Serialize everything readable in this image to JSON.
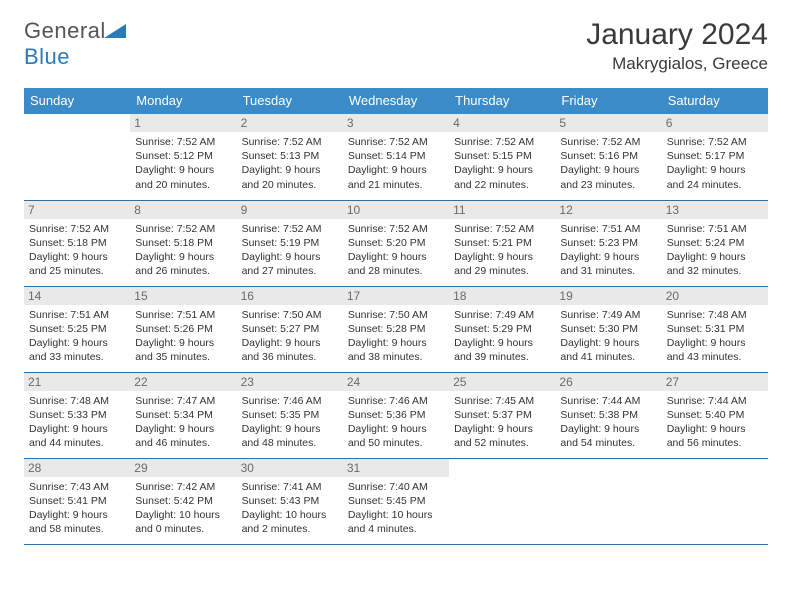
{
  "logo": {
    "text1": "General",
    "text2": "Blue"
  },
  "title": "January 2024",
  "location": "Makrygialos, Greece",
  "colors": {
    "header_bg": "#3b8bc9",
    "header_fg": "#ffffff",
    "daynum_bg": "#e9e9e9",
    "daynum_fg": "#6a6a6a",
    "rule": "#2f6fa3",
    "logo_blue": "#2a7ab9"
  },
  "weekdays": [
    "Sunday",
    "Monday",
    "Tuesday",
    "Wednesday",
    "Thursday",
    "Friday",
    "Saturday"
  ],
  "weeks": [
    [
      {
        "n": "",
        "sr": "",
        "ss": "",
        "dl": ""
      },
      {
        "n": "1",
        "sr": "Sunrise: 7:52 AM",
        "ss": "Sunset: 5:12 PM",
        "dl": "Daylight: 9 hours and 20 minutes."
      },
      {
        "n": "2",
        "sr": "Sunrise: 7:52 AM",
        "ss": "Sunset: 5:13 PM",
        "dl": "Daylight: 9 hours and 20 minutes."
      },
      {
        "n": "3",
        "sr": "Sunrise: 7:52 AM",
        "ss": "Sunset: 5:14 PM",
        "dl": "Daylight: 9 hours and 21 minutes."
      },
      {
        "n": "4",
        "sr": "Sunrise: 7:52 AM",
        "ss": "Sunset: 5:15 PM",
        "dl": "Daylight: 9 hours and 22 minutes."
      },
      {
        "n": "5",
        "sr": "Sunrise: 7:52 AM",
        "ss": "Sunset: 5:16 PM",
        "dl": "Daylight: 9 hours and 23 minutes."
      },
      {
        "n": "6",
        "sr": "Sunrise: 7:52 AM",
        "ss": "Sunset: 5:17 PM",
        "dl": "Daylight: 9 hours and 24 minutes."
      }
    ],
    [
      {
        "n": "7",
        "sr": "Sunrise: 7:52 AM",
        "ss": "Sunset: 5:18 PM",
        "dl": "Daylight: 9 hours and 25 minutes."
      },
      {
        "n": "8",
        "sr": "Sunrise: 7:52 AM",
        "ss": "Sunset: 5:18 PM",
        "dl": "Daylight: 9 hours and 26 minutes."
      },
      {
        "n": "9",
        "sr": "Sunrise: 7:52 AM",
        "ss": "Sunset: 5:19 PM",
        "dl": "Daylight: 9 hours and 27 minutes."
      },
      {
        "n": "10",
        "sr": "Sunrise: 7:52 AM",
        "ss": "Sunset: 5:20 PM",
        "dl": "Daylight: 9 hours and 28 minutes."
      },
      {
        "n": "11",
        "sr": "Sunrise: 7:52 AM",
        "ss": "Sunset: 5:21 PM",
        "dl": "Daylight: 9 hours and 29 minutes."
      },
      {
        "n": "12",
        "sr": "Sunrise: 7:51 AM",
        "ss": "Sunset: 5:23 PM",
        "dl": "Daylight: 9 hours and 31 minutes."
      },
      {
        "n": "13",
        "sr": "Sunrise: 7:51 AM",
        "ss": "Sunset: 5:24 PM",
        "dl": "Daylight: 9 hours and 32 minutes."
      }
    ],
    [
      {
        "n": "14",
        "sr": "Sunrise: 7:51 AM",
        "ss": "Sunset: 5:25 PM",
        "dl": "Daylight: 9 hours and 33 minutes."
      },
      {
        "n": "15",
        "sr": "Sunrise: 7:51 AM",
        "ss": "Sunset: 5:26 PM",
        "dl": "Daylight: 9 hours and 35 minutes."
      },
      {
        "n": "16",
        "sr": "Sunrise: 7:50 AM",
        "ss": "Sunset: 5:27 PM",
        "dl": "Daylight: 9 hours and 36 minutes."
      },
      {
        "n": "17",
        "sr": "Sunrise: 7:50 AM",
        "ss": "Sunset: 5:28 PM",
        "dl": "Daylight: 9 hours and 38 minutes."
      },
      {
        "n": "18",
        "sr": "Sunrise: 7:49 AM",
        "ss": "Sunset: 5:29 PM",
        "dl": "Daylight: 9 hours and 39 minutes."
      },
      {
        "n": "19",
        "sr": "Sunrise: 7:49 AM",
        "ss": "Sunset: 5:30 PM",
        "dl": "Daylight: 9 hours and 41 minutes."
      },
      {
        "n": "20",
        "sr": "Sunrise: 7:48 AM",
        "ss": "Sunset: 5:31 PM",
        "dl": "Daylight: 9 hours and 43 minutes."
      }
    ],
    [
      {
        "n": "21",
        "sr": "Sunrise: 7:48 AM",
        "ss": "Sunset: 5:33 PM",
        "dl": "Daylight: 9 hours and 44 minutes."
      },
      {
        "n": "22",
        "sr": "Sunrise: 7:47 AM",
        "ss": "Sunset: 5:34 PM",
        "dl": "Daylight: 9 hours and 46 minutes."
      },
      {
        "n": "23",
        "sr": "Sunrise: 7:46 AM",
        "ss": "Sunset: 5:35 PM",
        "dl": "Daylight: 9 hours and 48 minutes."
      },
      {
        "n": "24",
        "sr": "Sunrise: 7:46 AM",
        "ss": "Sunset: 5:36 PM",
        "dl": "Daylight: 9 hours and 50 minutes."
      },
      {
        "n": "25",
        "sr": "Sunrise: 7:45 AM",
        "ss": "Sunset: 5:37 PM",
        "dl": "Daylight: 9 hours and 52 minutes."
      },
      {
        "n": "26",
        "sr": "Sunrise: 7:44 AM",
        "ss": "Sunset: 5:38 PM",
        "dl": "Daylight: 9 hours and 54 minutes."
      },
      {
        "n": "27",
        "sr": "Sunrise: 7:44 AM",
        "ss": "Sunset: 5:40 PM",
        "dl": "Daylight: 9 hours and 56 minutes."
      }
    ],
    [
      {
        "n": "28",
        "sr": "Sunrise: 7:43 AM",
        "ss": "Sunset: 5:41 PM",
        "dl": "Daylight: 9 hours and 58 minutes."
      },
      {
        "n": "29",
        "sr": "Sunrise: 7:42 AM",
        "ss": "Sunset: 5:42 PM",
        "dl": "Daylight: 10 hours and 0 minutes."
      },
      {
        "n": "30",
        "sr": "Sunrise: 7:41 AM",
        "ss": "Sunset: 5:43 PM",
        "dl": "Daylight: 10 hours and 2 minutes."
      },
      {
        "n": "31",
        "sr": "Sunrise: 7:40 AM",
        "ss": "Sunset: 5:45 PM",
        "dl": "Daylight: 10 hours and 4 minutes."
      },
      {
        "n": "",
        "sr": "",
        "ss": "",
        "dl": ""
      },
      {
        "n": "",
        "sr": "",
        "ss": "",
        "dl": ""
      },
      {
        "n": "",
        "sr": "",
        "ss": "",
        "dl": ""
      }
    ]
  ]
}
